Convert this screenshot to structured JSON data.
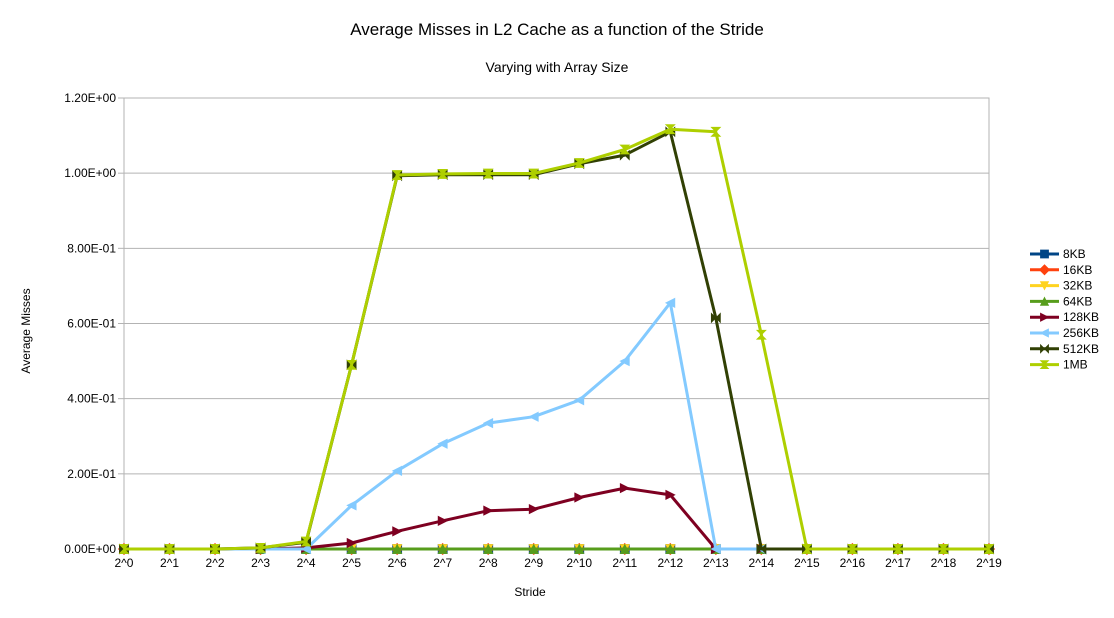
{
  "chart_data": {
    "type": "line",
    "title": "Average Misses in L2 Cache as a function of the Stride",
    "subtitle": "Varying with Array Size",
    "xlabel": "Stride",
    "ylabel": "Average Misses",
    "categories": [
      "2^0",
      "2^1",
      "2^2",
      "2^3",
      "2^4",
      "2^5",
      "2^6",
      "2^7",
      "2^8",
      "2^9",
      "2^10",
      "2^11",
      "2^12",
      "2^13",
      "2^14",
      "2^15",
      "2^16",
      "2^17",
      "2^18",
      "2^19"
    ],
    "ylim": [
      0,
      1.2
    ],
    "yticks": [
      {
        "value": 0,
        "label": "0.00E+00"
      },
      {
        "value": 0.2,
        "label": "2.00E-01"
      },
      {
        "value": 0.4,
        "label": "4.00E-01"
      },
      {
        "value": 0.6,
        "label": "6.00E-01"
      },
      {
        "value": 0.8,
        "label": "8.00E-01"
      },
      {
        "value": 1.0,
        "label": "1.00E+00"
      },
      {
        "value": 1.2,
        "label": "1.20E+00"
      }
    ],
    "grid": "horizontal",
    "legend_position": "right",
    "series": [
      {
        "name": "8KB",
        "color": "#004586",
        "marker": "square",
        "values": [
          0,
          0,
          0,
          0,
          0,
          0,
          0,
          0,
          0,
          0,
          0,
          0,
          0,
          0,
          0,
          0,
          0,
          0,
          0,
          0
        ]
      },
      {
        "name": "16KB",
        "color": "#ff420e",
        "marker": "diamond",
        "values": [
          0,
          0,
          0,
          0,
          0,
          0,
          0,
          0,
          0,
          0,
          0,
          0,
          0,
          0,
          0,
          0,
          0,
          0,
          0,
          0
        ]
      },
      {
        "name": "32KB",
        "color": "#ffd320",
        "marker": "triangle-down",
        "values": [
          0,
          0,
          0,
          0,
          0,
          0,
          0,
          0,
          0,
          0,
          0,
          0,
          0,
          0,
          0,
          0,
          0,
          0,
          0,
          0
        ]
      },
      {
        "name": "64KB",
        "color": "#579d1c",
        "marker": "triangle-up",
        "values": [
          0,
          0,
          0,
          0,
          0,
          0,
          0,
          0,
          0,
          0,
          0,
          0,
          0,
          0,
          0,
          0,
          0,
          0,
          0,
          0
        ]
      },
      {
        "name": "128KB",
        "color": "#7e0021",
        "marker": "triangle-right",
        "values": [
          0,
          0,
          0,
          0,
          0.003,
          0.016,
          0.047,
          0.075,
          0.102,
          0.106,
          0.137,
          0.162,
          0.144,
          0,
          0,
          0,
          0,
          0,
          0,
          0
        ]
      },
      {
        "name": "256KB",
        "color": "#83caff",
        "marker": "triangle-left",
        "values": [
          0,
          0,
          0,
          0,
          0,
          0.116,
          0.208,
          0.28,
          0.335,
          0.352,
          0.396,
          0.5,
          0.655,
          0,
          0,
          0,
          0,
          0,
          0,
          0
        ]
      },
      {
        "name": "512KB",
        "color": "#314004",
        "marker": "bowtie",
        "values": [
          0,
          0,
          0,
          0.003,
          0.018,
          0.49,
          0.993,
          0.996,
          0.996,
          0.996,
          1.025,
          1.048,
          1.11,
          0.615,
          0,
          0,
          0,
          0,
          0,
          0
        ]
      },
      {
        "name": "1MB",
        "color": "#aecf00",
        "marker": "hourglass",
        "values": [
          0,
          0,
          0,
          0.003,
          0.02,
          0.49,
          0.995,
          0.998,
          0.999,
          0.999,
          1.027,
          1.063,
          1.117,
          1.11,
          0.57,
          0,
          0,
          0,
          0,
          0
        ]
      }
    ]
  }
}
